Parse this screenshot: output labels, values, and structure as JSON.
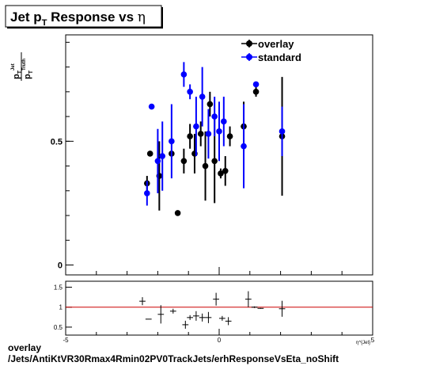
{
  "title": {
    "prefix": "Jet p",
    "sub": "T",
    "suffix": " Response vs ",
    "greek": "η"
  },
  "ylabel": {
    "num": "p",
    "num_sub": "T",
    "num_sup": "Jet",
    "den": "p",
    "den_sub": "T",
    "den_sup": "Truth"
  },
  "xlabel_partial": "η^{Jet}",
  "footer": {
    "line1": "overlay",
    "line2": "/Jets/AntiKtVR30Rmax4Rmin02PV0TrackJets/erhResponseVsEta_noShift"
  },
  "chart_data": [
    {
      "type": "scatter",
      "title": "Jet p_T Response vs η",
      "xlim": [
        -5,
        5
      ],
      "ylim": [
        -0.04,
        0.93
      ],
      "yticks": [
        "0",
        "0.5"
      ],
      "yticks_values": [
        0,
        0.5
      ],
      "xtick_labels": [],
      "legend": "top-right",
      "series": [
        {
          "name": "overlay",
          "color": "#000000",
          "x": [
            -2.35,
            -2.25,
            -1.95,
            -1.55,
            -1.35,
            -1.15,
            -0.95,
            -0.8,
            -0.6,
            -0.45,
            -0.3,
            -0.15,
            0.05,
            0.2,
            0.35,
            0.8,
            1.2,
            2.05
          ],
          "y": [
            0.33,
            0.45,
            0.36,
            0.45,
            0.21,
            0.42,
            0.52,
            0.45,
            0.53,
            0.4,
            0.65,
            0.42,
            0.37,
            0.38,
            0.52,
            0.56,
            0.7,
            0.52
          ],
          "yerr": [
            0.03,
            0.0,
            0.14,
            0.01,
            0.01,
            0.05,
            0.05,
            0.08,
            0.05,
            0.14,
            0.05,
            0.17,
            0.02,
            0.06,
            0.04,
            0.1,
            0.02,
            0.24
          ]
        },
        {
          "name": "standard",
          "color": "#0000ff",
          "x": [
            -2.35,
            -2.2,
            -2.0,
            -1.85,
            -1.55,
            -1.15,
            -0.95,
            -0.75,
            -0.55,
            -0.35,
            -0.15,
            0.0,
            0.15,
            0.8,
            1.2,
            2.05
          ],
          "y": [
            0.29,
            0.64,
            0.42,
            0.44,
            0.5,
            0.77,
            0.7,
            0.56,
            0.68,
            0.53,
            0.6,
            0.54,
            0.58,
            0.48,
            0.73,
            0.54
          ],
          "yerr": [
            0.05,
            0.0,
            0.13,
            0.14,
            0.15,
            0.05,
            0.03,
            0.12,
            0.12,
            0.1,
            0.08,
            0.12,
            0.1,
            0.17,
            0.01,
            0.1
          ]
        }
      ]
    },
    {
      "type": "scatter",
      "title": "",
      "xlim": [
        -5,
        5
      ],
      "ylim": [
        0.3,
        1.65
      ],
      "yticks": [
        "0.5",
        "1",
        "1.5"
      ],
      "yticks_values": [
        0.5,
        1.0,
        1.5
      ],
      "xtick_labels": [
        "-5",
        "0",
        "5"
      ],
      "xtick_values": [
        -5,
        0,
        5
      ],
      "reference_line": {
        "y": 1.0,
        "color": "#cc0000"
      },
      "series": [
        {
          "name": "",
          "color": "#000000",
          "x": [
            -2.5,
            -2.3,
            -1.9,
            -1.5,
            -1.1,
            -0.95,
            -0.75,
            -0.55,
            -0.35,
            -0.1,
            0.1,
            0.3,
            0.95,
            1.15,
            1.35,
            2.05
          ],
          "y": [
            1.15,
            0.7,
            0.82,
            0.9,
            0.56,
            0.74,
            0.78,
            0.74,
            0.74,
            1.2,
            0.72,
            0.65,
            1.2,
            1.0,
            0.97,
            0.96
          ],
          "yerr": [
            0.1,
            0.0,
            0.23,
            0.06,
            0.1,
            0.06,
            0.12,
            0.1,
            0.14,
            0.16,
            0.06,
            0.1,
            0.2,
            0.02,
            0.01,
            0.2
          ],
          "xerr": [
            0.1,
            0.1,
            0.1,
            0.1,
            0.1,
            0.1,
            0.1,
            0.1,
            0.1,
            0.1,
            0.1,
            0.1,
            0.1,
            0.1,
            0.1,
            0.1
          ]
        }
      ]
    }
  ]
}
